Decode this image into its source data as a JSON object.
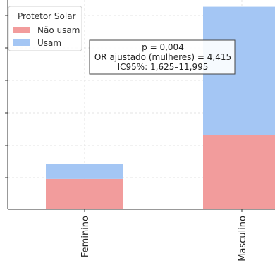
{
  "chart_data": {
    "type": "bar",
    "stacked": true,
    "categories": [
      "Feminino",
      "Masculino"
    ],
    "series": [
      {
        "name": "Não usam",
        "color": "#F29C9C",
        "values": [
          9,
          22
        ]
      },
      {
        "name": "Usam",
        "color": "#A4C6F4",
        "values": [
          4.5,
          38
        ]
      }
    ],
    "ylim": [
      0,
      62
    ],
    "grid": true,
    "legend": {
      "title": "Protetor Solar",
      "placement": "top-left"
    },
    "annotation": [
      "p = 0,004",
      "OR ajustado (mulheres) = 4,415",
      "IC95%: 1,625–11,995"
    ]
  }
}
